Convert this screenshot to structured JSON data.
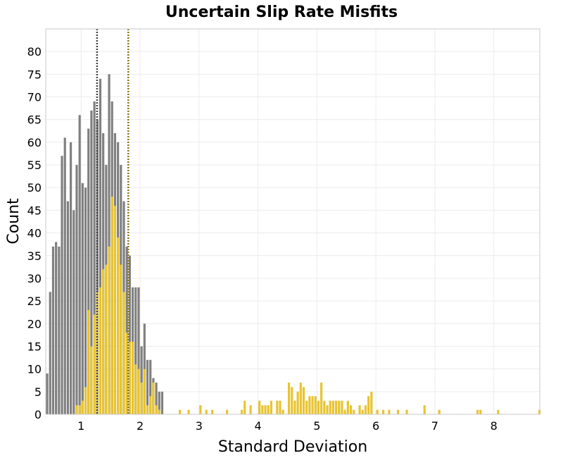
{
  "chart_data": {
    "type": "histogram",
    "title": "Uncertain Slip Rate Misfits",
    "xlabel": "Standard Deviation",
    "ylabel": "Count",
    "xlim": [
      0.4,
      8.78
    ],
    "ylim": [
      0,
      85
    ],
    "bin_width": 0.05,
    "x_ticks": [
      1,
      2,
      3,
      4,
      5,
      6,
      7,
      8
    ],
    "x_tick_labels": [
      "1",
      "2",
      "3",
      "4",
      "5",
      "6",
      "7",
      "8"
    ],
    "y_ticks": [
      0,
      5,
      10,
      15,
      20,
      25,
      30,
      35,
      40,
      45,
      50,
      55,
      60,
      65,
      70,
      75,
      80
    ],
    "y_tick_labels": [
      "0",
      "5",
      "10",
      "15",
      "20",
      "25",
      "30",
      "35",
      "40",
      "45",
      "50",
      "55",
      "60",
      "65",
      "70",
      "75",
      "80"
    ],
    "grid": true,
    "series": [
      {
        "name": "gray",
        "color": "#808080",
        "bins": [
          [
            0.4,
            9
          ],
          [
            0.45,
            27
          ],
          [
            0.5,
            37
          ],
          [
            0.55,
            38
          ],
          [
            0.6,
            37
          ],
          [
            0.65,
            57
          ],
          [
            0.7,
            61
          ],
          [
            0.75,
            47
          ],
          [
            0.8,
            60
          ],
          [
            0.85,
            45
          ],
          [
            0.9,
            55
          ],
          [
            0.95,
            66
          ],
          [
            1.0,
            51
          ],
          [
            1.05,
            50
          ],
          [
            1.1,
            63
          ],
          [
            1.15,
            67
          ],
          [
            1.2,
            69
          ],
          [
            1.25,
            65
          ],
          [
            1.3,
            74
          ],
          [
            1.35,
            62
          ],
          [
            1.4,
            55
          ],
          [
            1.45,
            75
          ],
          [
            1.5,
            69
          ],
          [
            1.55,
            62
          ],
          [
            1.6,
            60
          ],
          [
            1.65,
            55
          ],
          [
            1.7,
            47
          ],
          [
            1.75,
            37
          ],
          [
            1.8,
            35
          ],
          [
            1.85,
            28
          ],
          [
            1.9,
            28
          ],
          [
            1.95,
            28
          ],
          [
            2.0,
            15
          ],
          [
            2.05,
            20
          ],
          [
            2.1,
            12
          ],
          [
            2.15,
            12
          ],
          [
            2.2,
            8
          ],
          [
            2.25,
            7
          ],
          [
            2.3,
            5
          ],
          [
            2.35,
            5
          ],
          [
            2.4,
            0
          ]
        ]
      },
      {
        "name": "yellow",
        "color": "#e8c430",
        "bins": [
          [
            0.9,
            2
          ],
          [
            0.95,
            2
          ],
          [
            1.0,
            3
          ],
          [
            1.05,
            6
          ],
          [
            1.1,
            23
          ],
          [
            1.15,
            15
          ],
          [
            1.2,
            22
          ],
          [
            1.25,
            27
          ],
          [
            1.3,
            28
          ],
          [
            1.35,
            32
          ],
          [
            1.4,
            33
          ],
          [
            1.45,
            37
          ],
          [
            1.5,
            48
          ],
          [
            1.55,
            46
          ],
          [
            1.6,
            39
          ],
          [
            1.65,
            33
          ],
          [
            1.7,
            27
          ],
          [
            1.75,
            18
          ],
          [
            1.8,
            16
          ],
          [
            1.85,
            16
          ],
          [
            1.9,
            11
          ],
          [
            1.95,
            10
          ],
          [
            2.0,
            7
          ],
          [
            2.05,
            10
          ],
          [
            2.1,
            2
          ],
          [
            2.15,
            4
          ],
          [
            2.2,
            7
          ],
          [
            2.25,
            2
          ],
          [
            2.3,
            1
          ],
          [
            2.65,
            1
          ],
          [
            2.8,
            1
          ],
          [
            3.0,
            2
          ],
          [
            3.1,
            1
          ],
          [
            3.2,
            1
          ],
          [
            3.45,
            1
          ],
          [
            3.7,
            1
          ],
          [
            3.75,
            3
          ],
          [
            3.85,
            2
          ],
          [
            4.0,
            3
          ],
          [
            4.05,
            2
          ],
          [
            4.1,
            2
          ],
          [
            4.15,
            2
          ],
          [
            4.2,
            3
          ],
          [
            4.3,
            3
          ],
          [
            4.35,
            3
          ],
          [
            4.4,
            1
          ],
          [
            4.5,
            7
          ],
          [
            4.55,
            6
          ],
          [
            4.6,
            3
          ],
          [
            4.65,
            5
          ],
          [
            4.7,
            7
          ],
          [
            4.75,
            6
          ],
          [
            4.8,
            3
          ],
          [
            4.85,
            4
          ],
          [
            4.9,
            4
          ],
          [
            4.95,
            4
          ],
          [
            5.0,
            3
          ],
          [
            5.05,
            7
          ],
          [
            5.1,
            3
          ],
          [
            5.15,
            2
          ],
          [
            5.2,
            3
          ],
          [
            5.25,
            3
          ],
          [
            5.3,
            3
          ],
          [
            5.35,
            3
          ],
          [
            5.4,
            3
          ],
          [
            5.45,
            1
          ],
          [
            5.5,
            3
          ],
          [
            5.55,
            2
          ],
          [
            5.6,
            1
          ],
          [
            5.7,
            2
          ],
          [
            5.75,
            1
          ],
          [
            5.8,
            2
          ],
          [
            5.85,
            4
          ],
          [
            5.9,
            5
          ],
          [
            6.0,
            1
          ],
          [
            6.1,
            1
          ],
          [
            6.2,
            1
          ],
          [
            6.35,
            1
          ],
          [
            6.5,
            1
          ],
          [
            6.8,
            2
          ],
          [
            7.05,
            1
          ],
          [
            7.7,
            1
          ],
          [
            7.75,
            1
          ],
          [
            8.05,
            1
          ],
          [
            8.75,
            1
          ]
        ]
      }
    ],
    "reference_lines": [
      {
        "name": "gray-median",
        "x": 1.27,
        "color": "#444444"
      },
      {
        "name": "yellow-median",
        "x": 1.8,
        "color": "#8a7319"
      }
    ]
  }
}
